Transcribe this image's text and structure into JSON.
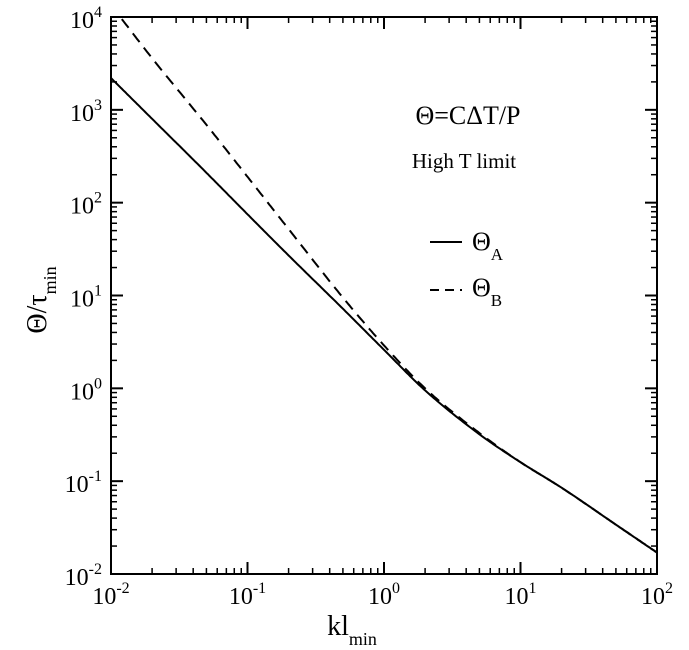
{
  "chart_data": {
    "type": "line",
    "title": "",
    "xlabel": {
      "main": "kl",
      "sub": "min"
    },
    "ylabel": {
      "main": "Θ/τ",
      "sub": "min"
    },
    "x_scale": "log",
    "y_scale": "log",
    "xlim": [
      0.01,
      100
    ],
    "ylim": [
      0.01,
      10000
    ],
    "x_ticks": [
      {
        "base": "10",
        "exp": "-2"
      },
      {
        "base": "10",
        "exp": "-1"
      },
      {
        "base": "10",
        "exp": "0"
      },
      {
        "base": "10",
        "exp": "1"
      },
      {
        "base": "10",
        "exp": "2"
      }
    ],
    "y_ticks": [
      {
        "base": "10",
        "exp": "-2"
      },
      {
        "base": "10",
        "exp": "-1"
      },
      {
        "base": "10",
        "exp": "0"
      },
      {
        "base": "10",
        "exp": "1"
      },
      {
        "base": "10",
        "exp": "2"
      },
      {
        "base": "10",
        "exp": "3"
      },
      {
        "base": "10",
        "exp": "4"
      }
    ],
    "grid": false,
    "annotations": [
      "Θ=CΔT/P",
      "High T limit"
    ],
    "legend": {
      "placement": "right-middle",
      "entries": [
        {
          "main": "Θ",
          "sub": "A",
          "style": "solid"
        },
        {
          "main": "Θ",
          "sub": "B",
          "style": "dashed"
        }
      ]
    },
    "series": [
      {
        "name": "Θ_A",
        "style": "solid",
        "color": "#000000",
        "x": [
          0.01,
          0.02,
          0.05,
          0.1,
          0.2,
          0.5,
          1,
          2,
          5,
          10,
          20,
          50,
          100
        ],
        "y": [
          2200,
          800,
          210,
          75,
          27,
          7.2,
          2.6,
          0.95,
          0.32,
          0.16,
          0.085,
          0.034,
          0.017
        ]
      },
      {
        "name": "Θ_B",
        "style": "dashed",
        "color": "#000000",
        "x": [
          0.012,
          0.02,
          0.05,
          0.1,
          0.2,
          0.5,
          1,
          2,
          5,
          10,
          20,
          50,
          100
        ],
        "y": [
          9500,
          3600,
          690,
          190,
          52,
          9.5,
          2.9,
          1.0,
          0.33,
          0.16,
          0.085,
          0.034,
          0.017
        ]
      }
    ]
  }
}
